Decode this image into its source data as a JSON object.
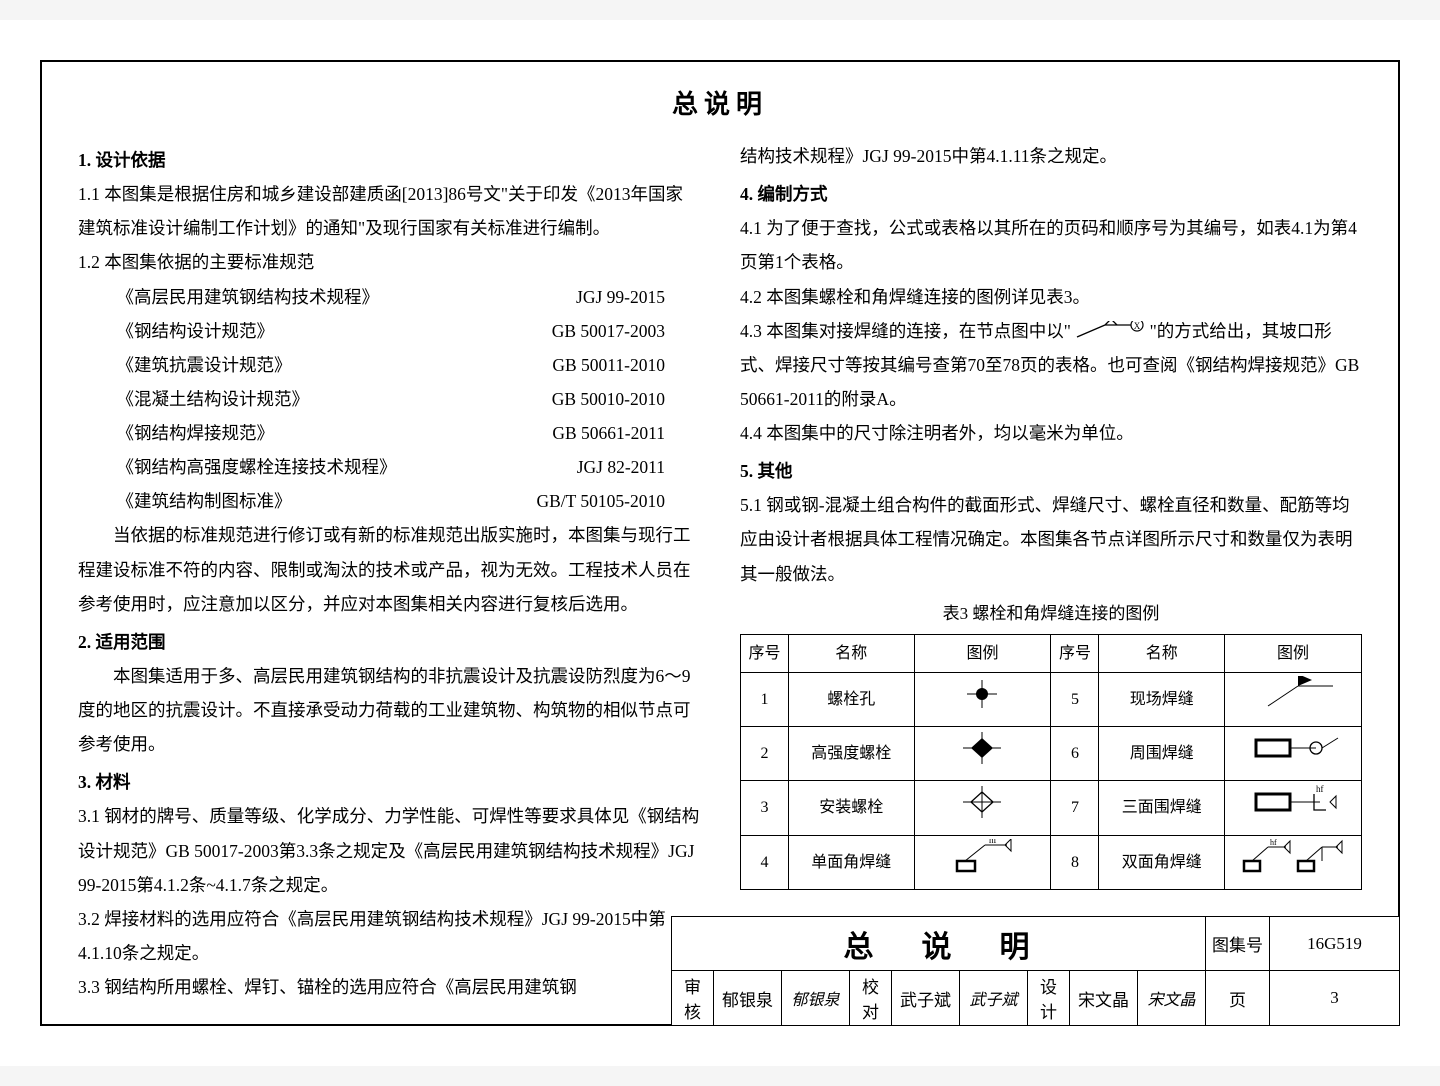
{
  "title": "总说明",
  "left": {
    "s1h": "1. 设计依据",
    "s11": "1.1 本图集是根据住房和城乡建设部建质函[2013]86号文\"关于印发《2013年国家建筑标准设计编制工作计划》的通知\"及现行国家有关标准进行编制。",
    "s12": "1.2 本图集依据的主要标准规范",
    "standards": [
      {
        "name": "《高层民用建筑钢结构技术规程》",
        "code": "JGJ 99-2015"
      },
      {
        "name": "《钢结构设计规范》",
        "code": "GB 50017-2003"
      },
      {
        "name": "《建筑抗震设计规范》",
        "code": "GB 50011-2010"
      },
      {
        "name": "《混凝土结构设计规范》",
        "code": "GB 50010-2010"
      },
      {
        "name": "《钢结构焊接规范》",
        "code": "GB 50661-2011"
      },
      {
        "name": "《钢结构高强度螺栓连接技术规程》",
        "code": "JGJ 82-2011"
      },
      {
        "name": "《建筑结构制图标准》",
        "code": "GB/T 50105-2010"
      }
    ],
    "s1note": "当依据的标准规范进行修订或有新的标准规范出版实施时，本图集与现行工程建设标准不符的内容、限制或淘汰的技术或产品，视为无效。工程技术人员在参考使用时，应注意加以区分，并应对本图集相关内容进行复核后选用。",
    "s2h": "2. 适用范围",
    "s2p": "本图集适用于多、高层民用建筑钢结构的非抗震设计及抗震设防烈度为6～9度的地区的抗震设计。不直接承受动力荷载的工业建筑物、构筑物的相似节点可参考使用。",
    "s3h": "3. 材料",
    "s31": "3.1 钢材的牌号、质量等级、化学成分、力学性能、可焊性等要求具体见《钢结构设计规范》GB 50017-2003第3.3条之规定及《高层民用建筑钢结构技术规程》JGJ 99-2015第4.1.2条~4.1.7条之规定。",
    "s32": "3.2 焊接材料的选用应符合《高层民用建筑钢结构技术规程》JGJ 99-2015中第4.1.10条之规定。",
    "s33": "3.3 钢结构所用螺栓、焊钉、锚栓的选用应符合《高层民用建筑钢"
  },
  "right": {
    "s33cont": "结构技术规程》JGJ 99-2015中第4.1.11条之规定。",
    "s4h": "4. 编制方式",
    "s41": "4.1 为了便于查找，公式或表格以其所在的页码和顺序号为其编号，如表4.1为第4页第1个表格。",
    "s42": "4.2 本图集螺栓和角焊缝连接的图例详见表3。",
    "s43a": "4.3 本图集对接焊缝的连接，在节点图中以\"",
    "s43b": "\"的方式给出，其坡口形式、焊接尺寸等按其编号查第70至78页的表格。也可查阅《钢结构焊接规范》GB 50661-2011的附录A。",
    "s44": "4.4 本图集中的尺寸除注明者外，均以毫米为单位。",
    "s5h": "5. 其他",
    "s51": "5.1 钢或钢-混凝土组合构件的截面形式、焊缝尺寸、螺栓直径和数量、配筋等均应由设计者根据具体工程情况确定。本图集各节点详图所示尺寸和数量仅为表明其一般做法。"
  },
  "table3": {
    "caption": "表3 螺栓和角焊缝连接的图例",
    "headers": [
      "序号",
      "名称",
      "图例",
      "序号",
      "名称",
      "图例"
    ],
    "rows": [
      {
        "i1": "1",
        "n1": "螺栓孔",
        "i2": "5",
        "n2": "现场焊缝"
      },
      {
        "i1": "2",
        "n1": "高强度螺栓",
        "i2": "6",
        "n2": "周围焊缝"
      },
      {
        "i1": "3",
        "n1": "安装螺栓",
        "i2": "7",
        "n2": "三面围焊缝"
      },
      {
        "i1": "4",
        "n1": "单面角焊缝",
        "i2": "8",
        "n2": "双面角焊缝"
      }
    ]
  },
  "titleblock": {
    "big": "总说明",
    "atlas_label": "图集号",
    "atlas_no": "16G519",
    "r": [
      {
        "k": "审核",
        "v": "郁银泉",
        "sig": "郁银泉"
      },
      {
        "k": "校对",
        "v": "武子斌",
        "sig": "武子斌"
      },
      {
        "k": "设计",
        "v": "宋文晶",
        "sig": "宋文晶"
      }
    ],
    "page_label": "页",
    "page_no": "3"
  }
}
